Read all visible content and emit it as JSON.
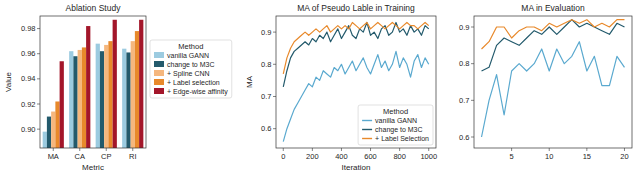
{
  "chart_data": [
    {
      "type": "bar",
      "title": "Ablation Study",
      "x_label": "Metric",
      "y_label": "Value",
      "categories": [
        "MA",
        "CA",
        "CP",
        "RI"
      ],
      "series": [
        {
          "name": "vanilla GANN",
          "color": "#9ccbe0",
          "values": [
            0.898,
            0.962,
            0.968,
            0.964
          ]
        },
        {
          "name": "change to M3C",
          "color": "#235a6c",
          "values": [
            0.91,
            0.958,
            0.962,
            0.961
          ]
        },
        {
          "name": "+ Spline CNN",
          "color": "#f5b77e",
          "values": [
            0.914,
            0.963,
            0.967,
            0.97
          ]
        },
        {
          "name": "+ Label selection",
          "color": "#e8892b",
          "values": [
            0.922,
            0.965,
            0.97,
            0.978
          ]
        },
        {
          "name": "+ Edge-wise affinity",
          "color": "#a3162a",
          "values": [
            0.954,
            0.982,
            0.987,
            0.987
          ]
        }
      ],
      "ylim": [
        0.885,
        0.99
      ],
      "yticks": [
        {
          "value": 0.9,
          "label": "0.90"
        },
        0.92,
        0.94,
        0.96,
        0.98
      ],
      "legend": "outside right",
      "legend_title": "Method",
      "grid": false
    },
    {
      "type": "line",
      "title": "MA of Pseudo Lable in Training",
      "x_label": "Iteration",
      "y_label": "MA",
      "x": [
        0,
        25,
        50,
        75,
        100,
        125,
        150,
        175,
        200,
        225,
        250,
        275,
        300,
        325,
        350,
        375,
        400,
        425,
        450,
        475,
        500,
        525,
        550,
        575,
        600,
        625,
        650,
        675,
        700,
        725,
        750,
        775,
        800,
        825,
        850,
        875,
        900,
        925,
        950,
        975,
        1000
      ],
      "series": [
        {
          "name": "vanilla GANN",
          "color": "#5aa9cf",
          "values": [
            0.56,
            0.6,
            0.63,
            0.66,
            0.68,
            0.7,
            0.72,
            0.74,
            0.73,
            0.76,
            0.75,
            0.78,
            0.77,
            0.76,
            0.79,
            0.78,
            0.8,
            0.77,
            0.79,
            0.81,
            0.78,
            0.8,
            0.82,
            0.79,
            0.77,
            0.8,
            0.83,
            0.79,
            0.81,
            0.78,
            0.8,
            0.84,
            0.79,
            0.82,
            0.8,
            0.76,
            0.81,
            0.83,
            0.79,
            0.82,
            0.8
          ]
        },
        {
          "name": "change to M3C",
          "color": "#235a6c",
          "values": [
            0.73,
            0.78,
            0.82,
            0.84,
            0.85,
            0.86,
            0.87,
            0.86,
            0.88,
            0.87,
            0.89,
            0.88,
            0.9,
            0.87,
            0.89,
            0.91,
            0.88,
            0.9,
            0.92,
            0.89,
            0.88,
            0.91,
            0.9,
            0.93,
            0.89,
            0.9,
            0.88,
            0.91,
            0.92,
            0.89,
            0.9,
            0.93,
            0.9,
            0.91,
            0.89,
            0.92,
            0.9,
            0.91,
            0.89,
            0.92,
            0.91
          ]
        },
        {
          "name": "+ Label Selection",
          "color": "#e8892b",
          "values": [
            0.77,
            0.82,
            0.85,
            0.87,
            0.88,
            0.89,
            0.9,
            0.89,
            0.9,
            0.91,
            0.9,
            0.91,
            0.92,
            0.9,
            0.91,
            0.92,
            0.91,
            0.92,
            0.91,
            0.93,
            0.92,
            0.91,
            0.92,
            0.93,
            0.91,
            0.92,
            0.93,
            0.92,
            0.91,
            0.92,
            0.93,
            0.92,
            0.91,
            0.92,
            0.93,
            0.92,
            0.92,
            0.91,
            0.92,
            0.93,
            0.92
          ]
        }
      ],
      "xlim": [
        -50,
        1050
      ],
      "xticks": [
        0,
        200,
        400,
        600,
        800,
        1000
      ],
      "ylim": [
        0.54,
        0.95
      ],
      "yticks": [
        0.6,
        0.7,
        0.8,
        0.9
      ],
      "legend": "lower right",
      "legend_title": "Method",
      "grid": false
    },
    {
      "type": "line",
      "title": "MA in Evaluation",
      "x": [
        1,
        2,
        3,
        4,
        5,
        6,
        7,
        8,
        9,
        10,
        11,
        12,
        13,
        14,
        15,
        16,
        17,
        18,
        19,
        20
      ],
      "series": [
        {
          "name": "vanilla GANN",
          "color": "#5aa9cf",
          "values": [
            0.6,
            0.7,
            0.77,
            0.66,
            0.78,
            0.8,
            0.78,
            0.8,
            0.84,
            0.78,
            0.84,
            0.8,
            0.82,
            0.86,
            0.78,
            0.82,
            0.74,
            0.74,
            0.82,
            0.79
          ]
        },
        {
          "name": "change to M3C",
          "color": "#235a6c",
          "values": [
            0.78,
            0.79,
            0.85,
            0.87,
            0.86,
            0.85,
            0.87,
            0.89,
            0.88,
            0.9,
            0.88,
            0.9,
            0.92,
            0.9,
            0.91,
            0.9,
            0.89,
            0.88,
            0.91,
            0.9
          ]
        },
        {
          "name": "+ Label Selection",
          "color": "#e8892b",
          "values": [
            0.84,
            0.86,
            0.9,
            0.9,
            0.87,
            0.89,
            0.9,
            0.9,
            0.89,
            0.91,
            0.9,
            0.91,
            0.92,
            0.91,
            0.92,
            0.9,
            0.91,
            0.9,
            0.92,
            0.92
          ]
        }
      ],
      "xlim": [
        0,
        21
      ],
      "xticks": [
        5,
        10,
        15,
        20
      ],
      "ylim": [
        0.57,
        0.93
      ],
      "yticks": [
        0.6,
        0.7,
        0.8,
        0.9
      ],
      "grid": false
    }
  ]
}
